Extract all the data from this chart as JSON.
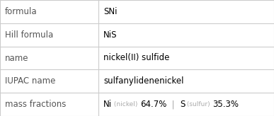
{
  "rows": [
    {
      "label": "formula",
      "value": "SNi",
      "value_style": "normal"
    },
    {
      "label": "Hill formula",
      "value": "NiS",
      "value_style": "normal"
    },
    {
      "label": "name",
      "value": "nickel(II) sulfide",
      "value_style": "normal"
    },
    {
      "label": "IUPAC name",
      "value": "sulfanylidenenickel",
      "value_style": "normal"
    },
    {
      "label": "mass fractions",
      "value": "mass_fractions_special",
      "value_style": "special"
    }
  ],
  "mass_fractions": {
    "ni_symbol": "Ni",
    "ni_label": "(nickel)",
    "ni_pct": "64.7%",
    "s_symbol": "S",
    "s_label": "(sulfur)",
    "s_pct": "35.3%"
  },
  "col_split": 0.36,
  "label_color": "#555555",
  "value_color": "#000000",
  "small_color": "#aaaaaa",
  "border_color": "#cccccc",
  "background_color": "#ffffff",
  "label_fontsize": 8.5,
  "value_fontsize": 8.5,
  "small_fontsize": 6.5
}
